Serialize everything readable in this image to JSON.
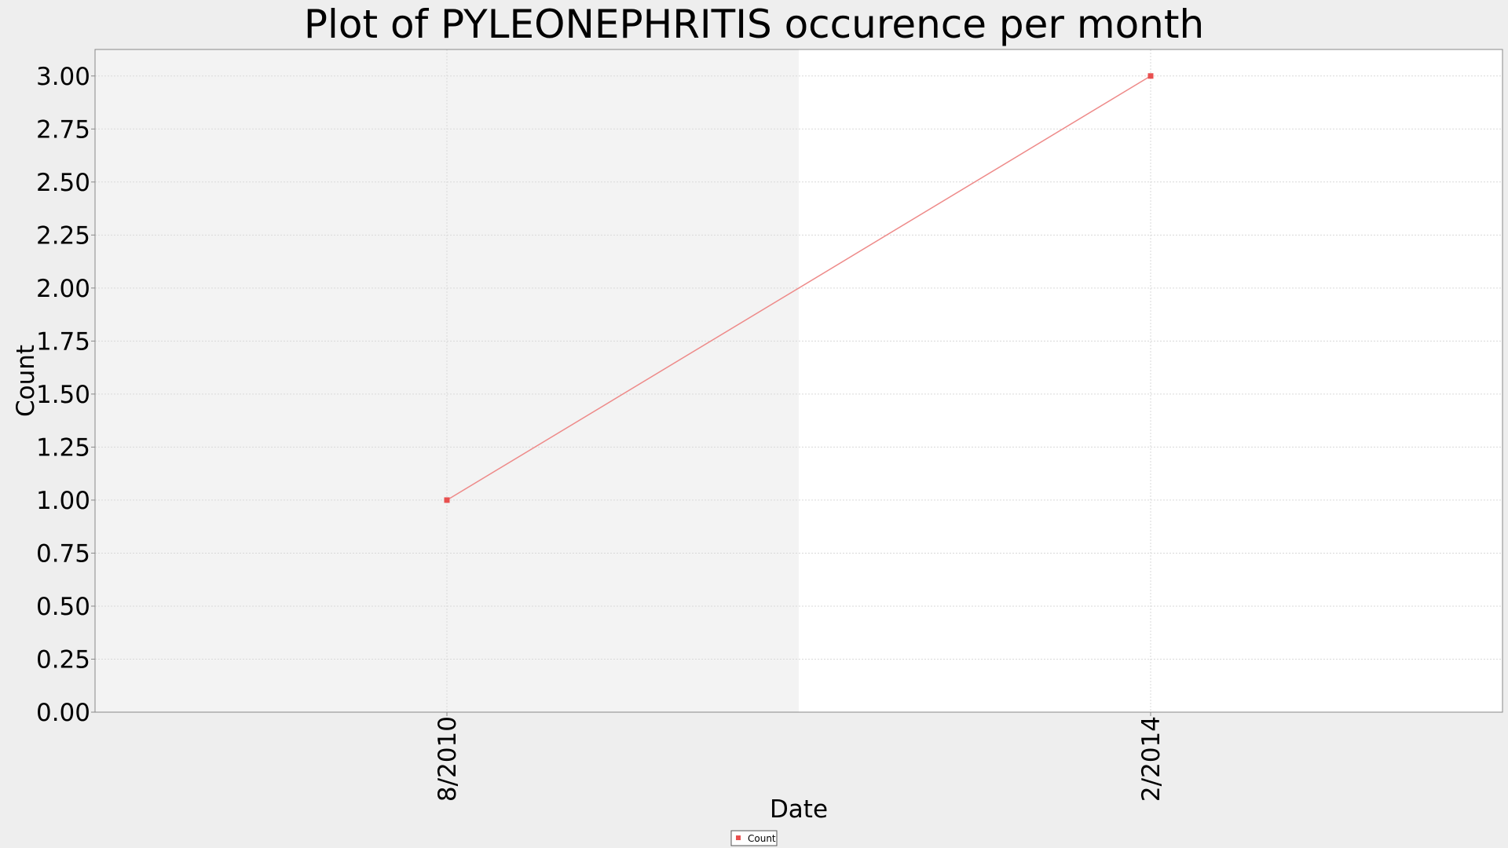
{
  "chart_data": {
    "type": "line",
    "title": "Plot of PYLEONEPHRITIS occurence per month",
    "xlabel": "Date",
    "ylabel": "Count",
    "categories": [
      "8/2010",
      "2/2014"
    ],
    "series": [
      {
        "name": "Count",
        "values": [
          1,
          3
        ]
      }
    ],
    "ylim": [
      0,
      3.125
    ],
    "y_ticks": [
      "0.00",
      "0.25",
      "0.50",
      "0.75",
      "1.00",
      "1.25",
      "1.50",
      "1.75",
      "2.00",
      "2.25",
      "2.50",
      "2.75",
      "3.00"
    ],
    "grid": true,
    "legend_position": "bottom-center",
    "colors": {
      "series": "#e8504f",
      "line": "#ee8a89",
      "band": "#f3f3f3",
      "plot_bg": "#ffffff",
      "page_bg": "#eeeeee",
      "grid": "#d9d9d9",
      "axis": "#888888"
    }
  }
}
